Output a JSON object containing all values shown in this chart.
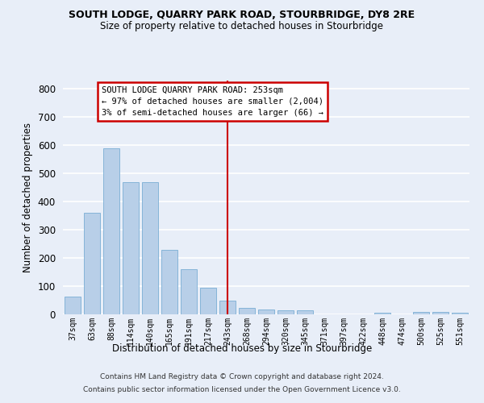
{
  "title": "SOUTH LODGE, QUARRY PARK ROAD, STOURBRIDGE, DY8 2RE",
  "subtitle": "Size of property relative to detached houses in Stourbridge",
  "xlabel": "Distribution of detached houses by size in Stourbridge",
  "ylabel": "Number of detached properties",
  "categories": [
    "37sqm",
    "63sqm",
    "88sqm",
    "114sqm",
    "140sqm",
    "165sqm",
    "191sqm",
    "217sqm",
    "243sqm",
    "268sqm",
    "294sqm",
    "320sqm",
    "345sqm",
    "371sqm",
    "397sqm",
    "422sqm",
    "448sqm",
    "474sqm",
    "500sqm",
    "525sqm",
    "551sqm"
  ],
  "values": [
    62,
    360,
    590,
    470,
    470,
    230,
    160,
    95,
    48,
    22,
    18,
    15,
    13,
    0,
    0,
    0,
    5,
    0,
    10,
    10,
    5
  ],
  "bar_color": "#b8cfe8",
  "bar_edge_color": "#7aadd4",
  "background_color": "#e8eef8",
  "grid_color": "#ffffff",
  "vline_index": 8,
  "annotation_text_line1": "SOUTH LODGE QUARRY PARK ROAD: 253sqm",
  "annotation_text_line2": "← 97% of detached houses are smaller (2,004)",
  "annotation_text_line3": "3% of semi-detached houses are larger (66) →",
  "annotation_box_facecolor": "#ffffff",
  "annotation_border_color": "#cc0000",
  "vline_color": "#cc0000",
  "ylim_max": 830,
  "yticks": [
    0,
    100,
    200,
    300,
    400,
    500,
    600,
    700,
    800
  ],
  "footer_line1": "Contains HM Land Registry data © Crown copyright and database right 2024.",
  "footer_line2": "Contains public sector information licensed under the Open Government Licence v3.0."
}
